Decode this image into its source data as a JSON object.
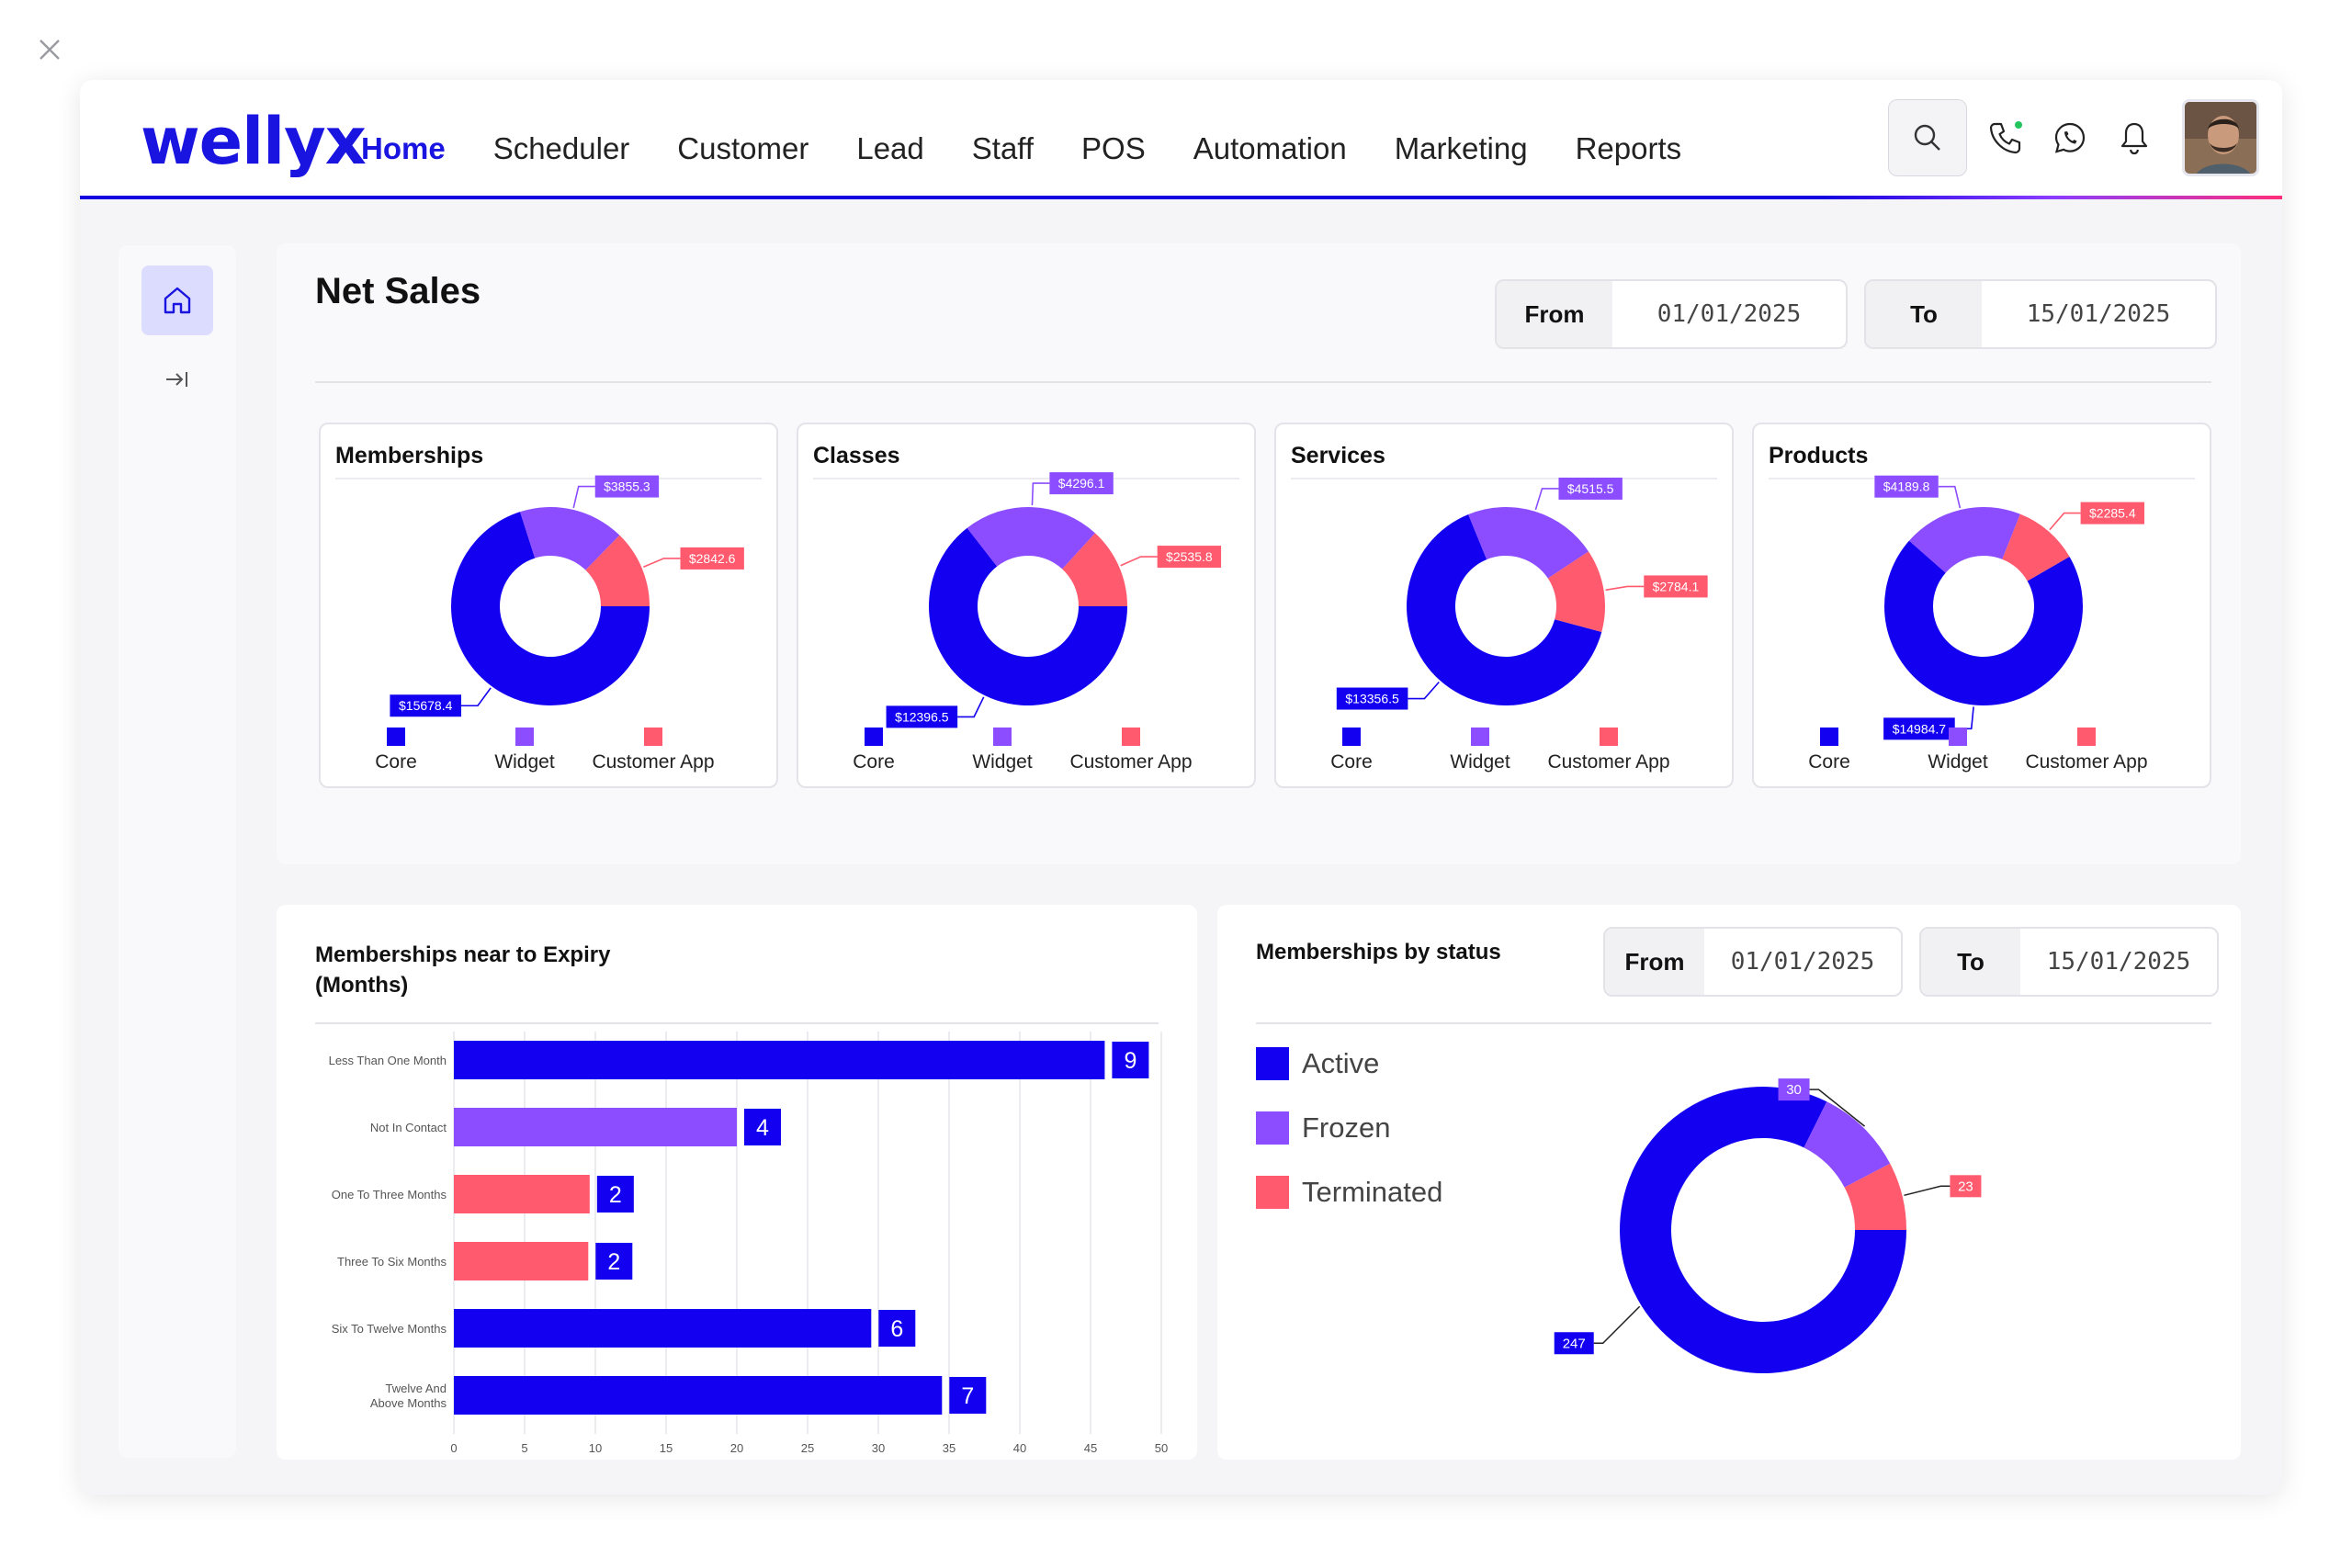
{
  "app": {
    "logo": "wellyx"
  },
  "nav": [
    {
      "label": "Home",
      "active": true
    },
    {
      "label": "Scheduler"
    },
    {
      "label": "Customer"
    },
    {
      "label": "Lead"
    },
    {
      "label": "Staff"
    },
    {
      "label": "POS"
    },
    {
      "label": "Automation"
    },
    {
      "label": "Marketing"
    },
    {
      "label": "Reports"
    }
  ],
  "colors": {
    "core": "#1400f0",
    "widget": "#8b4dff",
    "customer_app": "#ff5a6e",
    "brand": "#1a14e0"
  },
  "net_sales": {
    "title": "Net Sales",
    "from_label": "From",
    "from_value": "01/01/2025",
    "to_label": "To",
    "to_value": "15/01/2025"
  },
  "expiry": {
    "title_line1": "Memberships near to Expiry",
    "title_line2": "(Months)"
  },
  "status": {
    "title": "Memberships by status",
    "from_label": "From",
    "from_value": "01/01/2025",
    "to_label": "To",
    "to_value": "15/01/2025",
    "legend": [
      "Active",
      "Frozen",
      "Terminated"
    ]
  },
  "chart_data": [
    {
      "type": "pie",
      "title": "Memberships",
      "categories": [
        "Core",
        "Widget",
        "Customer App"
      ],
      "values": [
        15678.4,
        3855.3,
        2842.6
      ],
      "labels": [
        "$15678.4",
        "$3855.3",
        "$2842.6"
      ]
    },
    {
      "type": "pie",
      "title": "Classes",
      "categories": [
        "Core",
        "Widget",
        "Customer App"
      ],
      "values": [
        12396.5,
        4296.1,
        2535.8
      ],
      "labels": [
        "$12396.5",
        "$4296.1",
        "$2535.8"
      ]
    },
    {
      "type": "pie",
      "title": "Services",
      "categories": [
        "Core",
        "Widget",
        "Customer App"
      ],
      "values": [
        13356.5,
        4515.5,
        2784.1
      ],
      "labels": [
        "$13356.5",
        "$4515.5",
        "$2784.1"
      ]
    },
    {
      "type": "pie",
      "title": "Products",
      "categories": [
        "Core",
        "Widget",
        "Customer App"
      ],
      "values": [
        14984.7,
        4189.8,
        2285.4
      ],
      "labels": [
        "$14984.7",
        "$4189.8",
        "$2285.4"
      ]
    },
    {
      "type": "bar",
      "orientation": "horizontal",
      "title": "Memberships near to Expiry (Months)",
      "categories": [
        "Less Than One Month",
        "Not In Contact",
        "One To Three Months",
        "Three To Six Months",
        "Six To Twelve Months",
        "Twelve And Above Months"
      ],
      "values": [
        9,
        4,
        2,
        2,
        6,
        7
      ],
      "bar_lengths": [
        46,
        20,
        9.6,
        9.5,
        29.5,
        34.5
      ],
      "bar_colors": [
        "core",
        "widget",
        "customer_app",
        "customer_app",
        "core",
        "core"
      ],
      "xticks": [
        0,
        5,
        10,
        15,
        20,
        25,
        30,
        35,
        40,
        45,
        50
      ],
      "xlim": [
        0,
        50
      ]
    },
    {
      "type": "pie",
      "title": "Memberships by status",
      "categories": [
        "Active",
        "Frozen",
        "Terminated"
      ],
      "values": [
        247,
        30,
        23
      ],
      "colors": [
        "core",
        "widget",
        "customer_app"
      ]
    }
  ]
}
